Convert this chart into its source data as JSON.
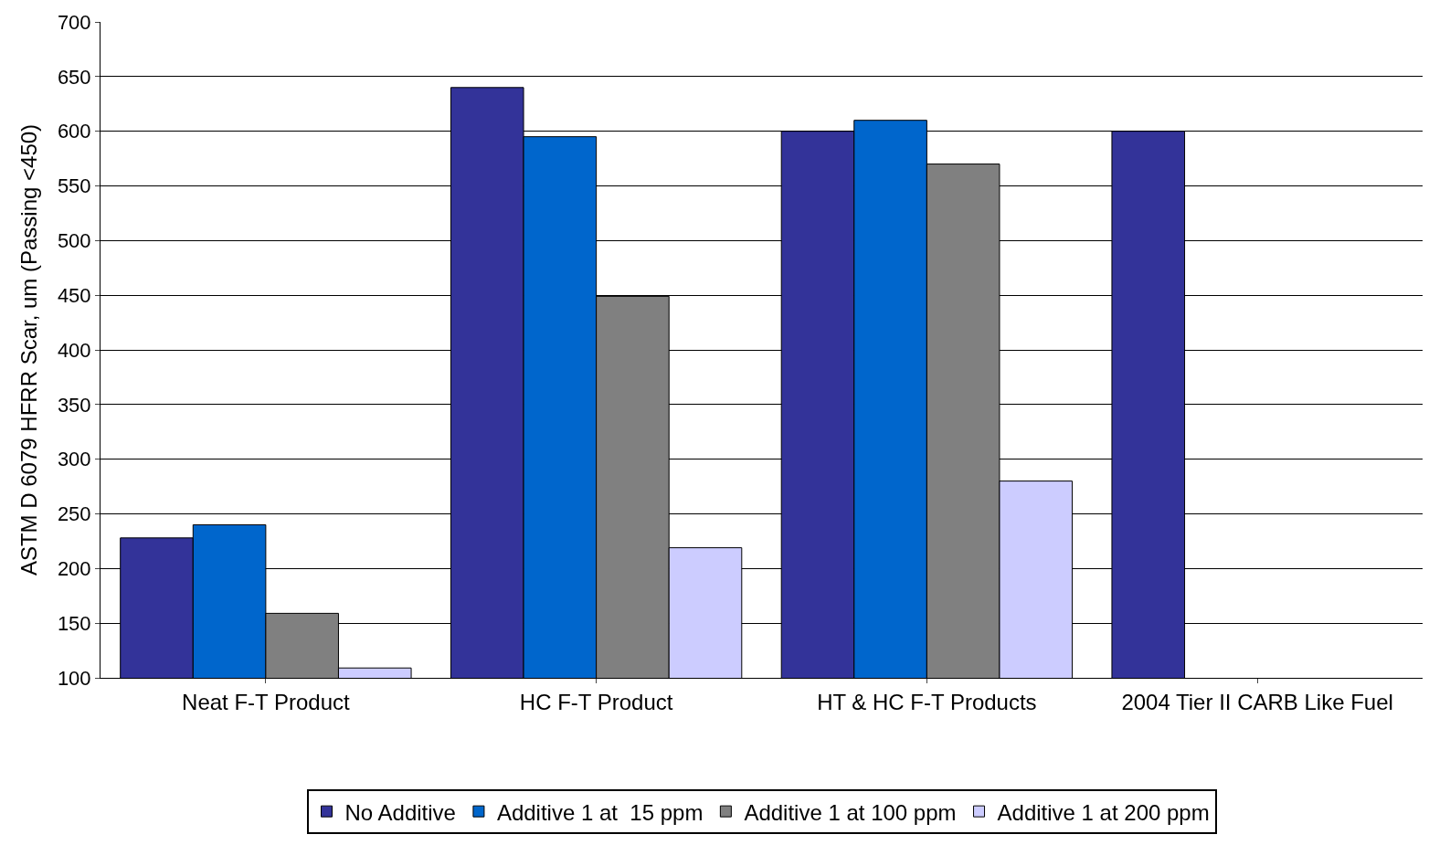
{
  "chart_data": {
    "type": "bar",
    "ylabel": "ASTM D 6079 HFRR Scar, um (Passing <450)",
    "categories": [
      "Neat F-T Product",
      "HC F-T Product",
      "HT & HC F-T Products",
      "2004 Tier II CARB Like Fuel"
    ],
    "series": [
      {
        "name": "No Additive",
        "color": "#333399",
        "values": [
          228,
          640,
          600,
          600
        ]
      },
      {
        "name": "Additive 1 at  15 ppm",
        "color": "#0066cc",
        "values": [
          240,
          595,
          610,
          null
        ]
      },
      {
        "name": "Additive 1 at 100 ppm",
        "color": "#808080",
        "values": [
          159,
          449,
          570,
          null
        ]
      },
      {
        "name": "Additive 1 at 200 ppm",
        "color": "#ccccff",
        "values": [
          109,
          219,
          280,
          null
        ]
      }
    ],
    "ylim": [
      100,
      700
    ],
    "yticks": [
      100,
      150,
      200,
      250,
      300,
      350,
      400,
      450,
      500,
      550,
      600,
      650,
      700
    ],
    "grid": "y",
    "legend": "bottom"
  }
}
